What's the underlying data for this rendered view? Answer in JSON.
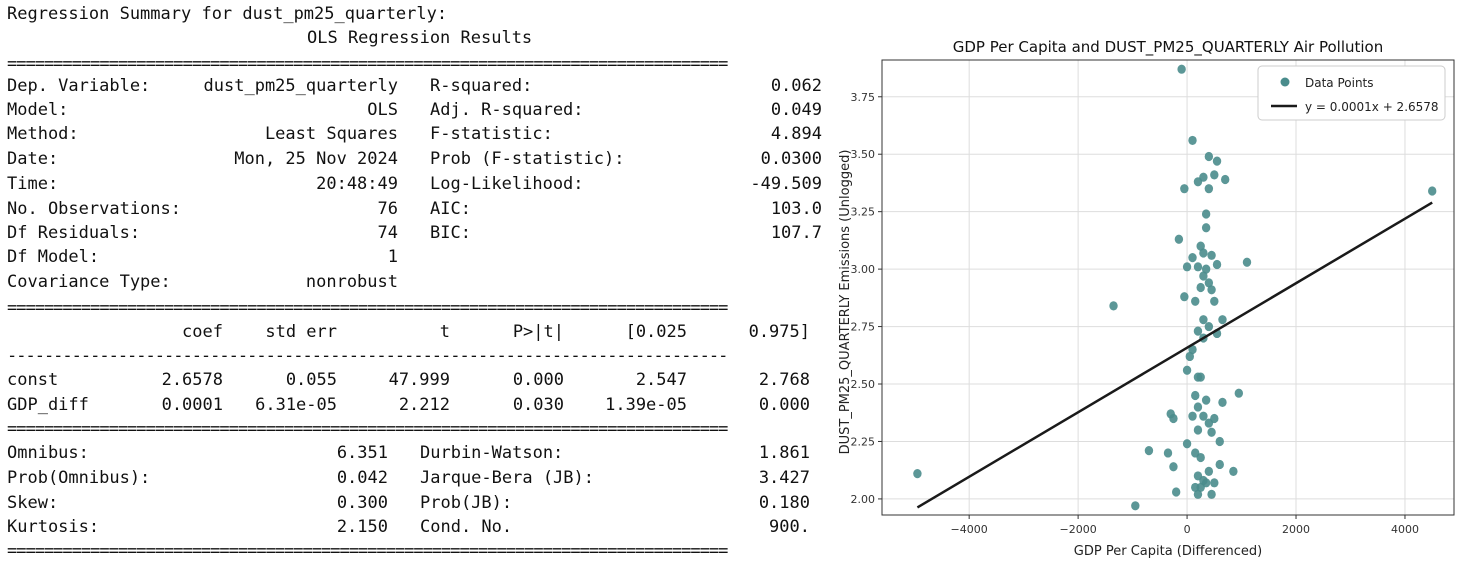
{
  "summary": {
    "heading": "Regression Summary for dust_pm25_quarterly:",
    "title": "OLS Regression Results",
    "sep_double": "==============================================================================",
    "sep_single": "------------------------------------------------------------------------------",
    "top_left": [
      {
        "label": "Dep. Variable:",
        "value": "dust_pm25_quarterly"
      },
      {
        "label": "Model:",
        "value": "OLS"
      },
      {
        "label": "Method:",
        "value": "Least Squares"
      },
      {
        "label": "Date:",
        "value": "Mon, 25 Nov 2024"
      },
      {
        "label": "Time:",
        "value": "20:48:49"
      },
      {
        "label": "No. Observations:",
        "value": "76"
      },
      {
        "label": "Df Residuals:",
        "value": "74"
      },
      {
        "label": "Df Model:",
        "value": "1"
      },
      {
        "label": "Covariance Type:",
        "value": "nonrobust"
      }
    ],
    "top_right": [
      {
        "label": "R-squared:",
        "value": "0.062"
      },
      {
        "label": "Adj. R-squared:",
        "value": "0.049"
      },
      {
        "label": "F-statistic:",
        "value": "4.894"
      },
      {
        "label": "Prob (F-statistic):",
        "value": "0.0300"
      },
      {
        "label": "Log-Likelihood:",
        "value": "-49.509"
      },
      {
        "label": "AIC:",
        "value": "103.0"
      },
      {
        "label": "BIC:",
        "value": "107.7"
      }
    ],
    "coef_headers": [
      "coef",
      "std err",
      "t",
      "P>|t|",
      "[0.025",
      "0.975]"
    ],
    "coef_rows": [
      {
        "name": "const",
        "vals": [
          "2.6578",
          "0.055",
          "47.999",
          "0.000",
          "2.547",
          "2.768"
        ]
      },
      {
        "name": "GDP_diff",
        "vals": [
          "0.0001",
          "6.31e-05",
          "2.212",
          "0.030",
          "1.39e-05",
          "0.000"
        ]
      }
    ],
    "bottom_left": [
      {
        "label": "Omnibus:",
        "value": "6.351"
      },
      {
        "label": "Prob(Omnibus):",
        "value": "0.042"
      },
      {
        "label": "Skew:",
        "value": "0.300"
      },
      {
        "label": "Kurtosis:",
        "value": "2.150"
      }
    ],
    "bottom_right": [
      {
        "label": "Durbin-Watson:",
        "value": "1.861"
      },
      {
        "label": "Jarque-Bera (JB):",
        "value": "3.427"
      },
      {
        "label": "Prob(JB):",
        "value": "0.180"
      },
      {
        "label": "Cond. No.",
        "value": "900."
      }
    ]
  },
  "chart_data": {
    "type": "scatter",
    "title": "GDP Per Capita and DUST_PM25_QUARTERLY Air Pollution",
    "xlabel": "GDP Per Capita (Differenced)",
    "ylabel": "DUST_PM25_QUARTERLY Emissions (Unlogged)",
    "xlim": [
      -5600,
      4900
    ],
    "ylim": [
      1.93,
      3.91
    ],
    "xticks": [
      -4000,
      -2000,
      0,
      2000,
      4000
    ],
    "yticks": [
      2.0,
      2.25,
      2.5,
      2.75,
      3.0,
      3.25,
      3.5,
      3.75
    ],
    "xtick_labels": [
      "−4000",
      "−2000",
      "0",
      "2000",
      "4000"
    ],
    "ytick_labels": [
      "2.00",
      "2.25",
      "2.50",
      "2.75",
      "3.00",
      "3.25",
      "3.50",
      "3.75"
    ],
    "grid": true,
    "legend_position": "top-right",
    "point_color": "#4a8c8c",
    "line_color": "#1a1a1a",
    "series": [
      {
        "name": "Data Points",
        "points": [
          [
            -100,
            3.87
          ],
          [
            100,
            3.56
          ],
          [
            400,
            3.49
          ],
          [
            550,
            3.47
          ],
          [
            500,
            3.41
          ],
          [
            700,
            3.39
          ],
          [
            300,
            3.4
          ],
          [
            200,
            3.38
          ],
          [
            -50,
            3.35
          ],
          [
            400,
            3.35
          ],
          [
            350,
            3.24
          ],
          [
            -150,
            3.13
          ],
          [
            250,
            3.1
          ],
          [
            300,
            3.07
          ],
          [
            450,
            3.06
          ],
          [
            100,
            3.05
          ],
          [
            1100,
            3.03
          ],
          [
            0,
            3.01
          ],
          [
            200,
            3.01
          ],
          [
            350,
            3.0
          ],
          [
            550,
            3.02
          ],
          [
            300,
            2.97
          ],
          [
            400,
            2.94
          ],
          [
            250,
            2.92
          ],
          [
            450,
            2.91
          ],
          [
            -50,
            2.88
          ],
          [
            150,
            2.86
          ],
          [
            500,
            2.86
          ],
          [
            -1350,
            2.84
          ],
          [
            300,
            2.78
          ],
          [
            650,
            2.78
          ],
          [
            400,
            2.75
          ],
          [
            200,
            2.73
          ],
          [
            550,
            2.72
          ],
          [
            300,
            2.7
          ],
          [
            100,
            2.65
          ],
          [
            50,
            2.62
          ],
          [
            0,
            2.56
          ],
          [
            200,
            2.53
          ],
          [
            250,
            2.53
          ],
          [
            950,
            2.46
          ],
          [
            350,
            2.43
          ],
          [
            650,
            2.42
          ],
          [
            200,
            2.4
          ],
          [
            100,
            2.36
          ],
          [
            300,
            2.36
          ],
          [
            -300,
            2.37
          ],
          [
            -250,
            2.35
          ],
          [
            400,
            2.33
          ],
          [
            500,
            2.35
          ],
          [
            200,
            2.3
          ],
          [
            450,
            2.29
          ],
          [
            0,
            2.24
          ],
          [
            -700,
            2.21
          ],
          [
            -350,
            2.2
          ],
          [
            150,
            2.2
          ],
          [
            250,
            2.18
          ],
          [
            600,
            2.15
          ],
          [
            -250,
            2.14
          ],
          [
            400,
            2.12
          ],
          [
            850,
            2.12
          ],
          [
            200,
            2.1
          ],
          [
            300,
            2.08
          ],
          [
            350,
            2.07
          ],
          [
            500,
            2.07
          ],
          [
            150,
            2.05
          ],
          [
            250,
            2.05
          ],
          [
            -200,
            2.03
          ],
          [
            200,
            2.02
          ],
          [
            450,
            2.02
          ],
          [
            -950,
            1.97
          ],
          [
            -4950,
            2.11
          ],
          [
            4500,
            3.34
          ],
          [
            350,
            3.18
          ],
          [
            150,
            2.45
          ],
          [
            600,
            2.25
          ]
        ]
      },
      {
        "name": "y = 0.0001x + 2.6578",
        "type": "line",
        "slope": 0.0001404,
        "intercept": 2.6578,
        "x_range": [
          -4950,
          4500
        ]
      }
    ]
  }
}
